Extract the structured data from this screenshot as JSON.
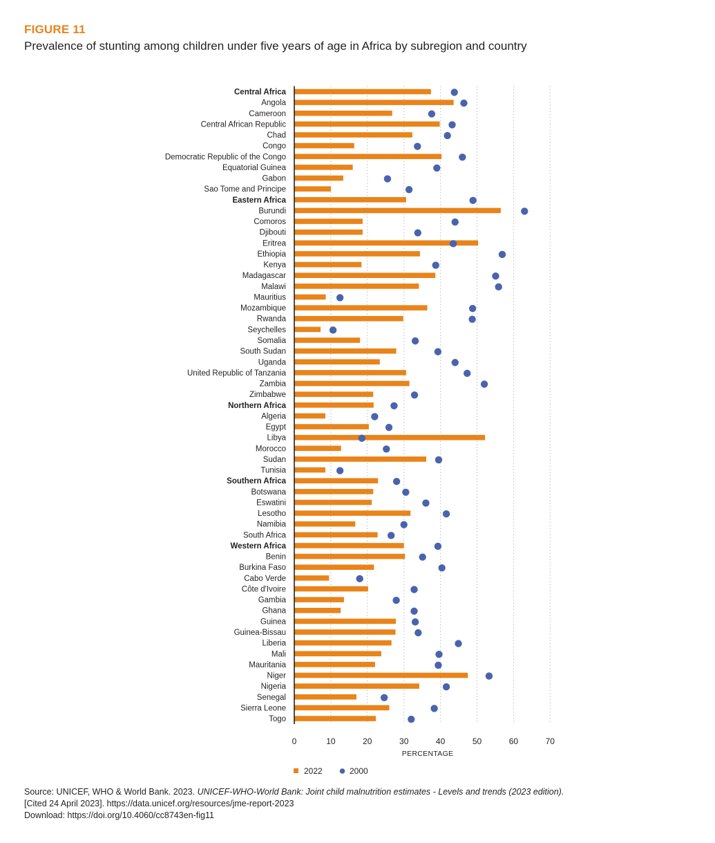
{
  "figure_label": "FIGURE 11",
  "figure_title": "Prevalence of stunting among children under five years of age in Africa by subregion and country",
  "source": {
    "line1_prefix": "Source: UNICEF, WHO & World Bank. 2023. ",
    "line1_italic": "UNICEF-WHO-World Bank: Joint child malnutrition estimates - Levels and trends (2023 edition).",
    "line2": "[Cited 24 April 2023]. https://data.unicef.org/resources/jme-report-2023",
    "line3": "Download: https://doi.org/10.4060/cc8743en-fig11"
  },
  "colors": {
    "bar_2022": "#e8841a",
    "dot_2000": "#4a63ad",
    "grid": "#bbbbbb",
    "axis": "#231f20"
  },
  "chart_data": {
    "type": "bar",
    "orientation": "horizontal",
    "xlabel": "PERCENTAGE",
    "xlim": [
      0,
      70
    ],
    "xticks": [
      0,
      10,
      20,
      30,
      40,
      50,
      60,
      70
    ],
    "grid": "vertical dotted",
    "legend_position": "bottom",
    "categories": [
      "Central Africa",
      "Angola",
      "Cameroon",
      "Central African Republic",
      "Chad",
      "Congo",
      "Democratic Republic of the Congo",
      "Equatorial Guinea",
      "Gabon",
      "Sao Tome and Principe",
      "Eastern Africa",
      "Burundi",
      "Comoros",
      "Djibouti",
      "Eritrea",
      "Ethiopia",
      "Kenya",
      "Madagascar",
      "Malawi",
      "Mauritius",
      "Mozambique",
      "Rwanda",
      "Seychelles",
      "Somalia",
      "South Sudan",
      "Uganda",
      "United Republic of Tanzania",
      "Zambia",
      "Zimbabwe",
      "Northern Africa",
      "Algeria",
      "Egypt",
      "Libya",
      "Morocco",
      "Sudan",
      "Tunisia",
      "Southern Africa",
      "Botswana",
      "Eswatini",
      "Lesotho",
      "Namibia",
      "South Africa",
      "Western Africa",
      "Benin",
      "Burkina Faso",
      "Cabo Verde",
      "Côte d'Ivoire",
      "Gambia",
      "Ghana",
      "Guinea",
      "Guinea-Bissau",
      "Liberia",
      "Mali",
      "Mauritania",
      "Niger",
      "Nigeria",
      "Senegal",
      "Sierra Leone",
      "Togo"
    ],
    "subregion_headers": [
      "Central Africa",
      "Eastern Africa",
      "Northern Africa",
      "Southern Africa",
      "Western Africa"
    ],
    "series": [
      {
        "name": "2022",
        "mark": "bar",
        "values": [
          37.4,
          43.6,
          26.8,
          39.8,
          32.3,
          16.4,
          40.3,
          16.0,
          13.4,
          10.0,
          30.6,
          56.5,
          18.7,
          18.7,
          50.3,
          34.4,
          18.4,
          38.6,
          34.1,
          8.6,
          36.4,
          29.8,
          7.2,
          18.0,
          27.9,
          23.4,
          30.6,
          31.5,
          21.6,
          21.7,
          8.5,
          20.4,
          52.2,
          12.8,
          36.1,
          8.5,
          22.9,
          21.6,
          21.2,
          31.8,
          16.7,
          22.8,
          30.0,
          30.3,
          21.8,
          9.5,
          20.2,
          13.6,
          12.7,
          27.8,
          27.7,
          26.6,
          23.8,
          22.1,
          47.5,
          34.2,
          17.0,
          26.0,
          22.3
        ]
      },
      {
        "name": "2000",
        "mark": "dot",
        "values": [
          43.8,
          46.4,
          37.6,
          43.2,
          41.9,
          33.7,
          46.0,
          39.0,
          25.5,
          31.4,
          48.9,
          63.0,
          44.0,
          33.8,
          43.5,
          56.9,
          38.7,
          55.1,
          55.9,
          12.5,
          48.8,
          48.7,
          10.6,
          33.1,
          39.3,
          44.0,
          47.3,
          52.0,
          32.9,
          27.3,
          22.0,
          25.9,
          18.5,
          25.2,
          39.5,
          12.5,
          28.0,
          30.5,
          36.0,
          41.6,
          30.0,
          26.5,
          39.3,
          35.1,
          40.4,
          17.9,
          32.8,
          27.9,
          32.8,
          33.1,
          33.9,
          44.9,
          39.6,
          39.4,
          53.3,
          41.6,
          24.6,
          38.3,
          32.0
        ]
      }
    ]
  },
  "legend": [
    {
      "label": "2022",
      "mark": "square"
    },
    {
      "label": "2000",
      "mark": "dot"
    }
  ]
}
